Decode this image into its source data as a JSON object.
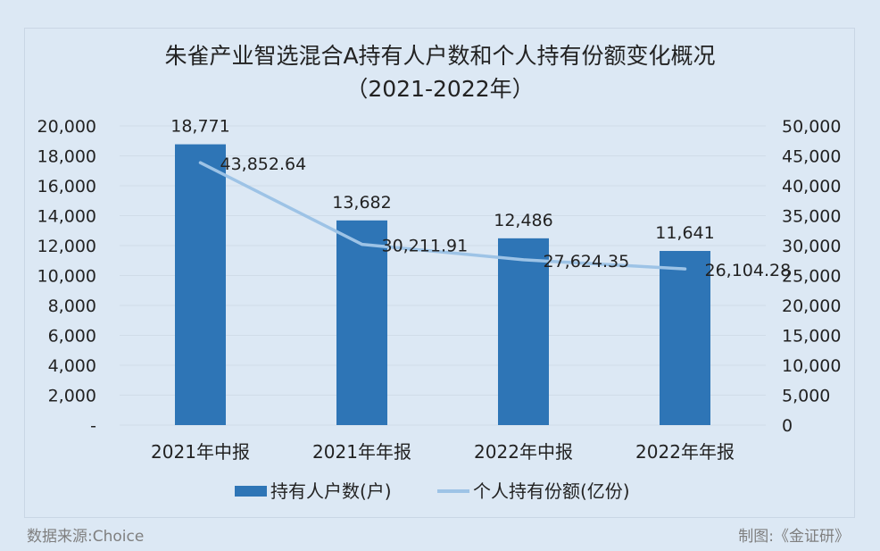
{
  "title_line1": "朱雀产业智选混合A持有人户数和个人持有份额变化概况",
  "title_line2": "（2021-2022年）",
  "source": "数据来源:Choice",
  "credit": "制图:《金证研》",
  "colors": {
    "bar": "#2e75b6",
    "line": "#9dc3e6",
    "background": "#dce8f4",
    "grid": "#d0dce8"
  },
  "chart_data": {
    "type": "bar",
    "categories": [
      "2021年中报",
      "2021年年报",
      "2022年中报",
      "2022年年报"
    ],
    "series": [
      {
        "name": "持有人户数(户)",
        "type": "bar",
        "axis": "left",
        "values": [
          18771,
          13682,
          12486,
          11641
        ],
        "labels": [
          "18,771",
          "13,682",
          "12,486",
          "11,641"
        ]
      },
      {
        "name": "个人持有份额(亿份)",
        "type": "line",
        "axis": "right",
        "values": [
          43852.64,
          30211.91,
          27624.35,
          26104.28
        ],
        "labels": [
          "43,852.64",
          "30,211.91",
          "27,624.35",
          "26,104.28"
        ]
      }
    ],
    "left_axis": {
      "ylim": [
        0,
        20000
      ],
      "ticks": [
        "-",
        "2,000",
        "4,000",
        "6,000",
        "8,000",
        "10,000",
        "12,000",
        "14,000",
        "16,000",
        "18,000",
        "20,000"
      ]
    },
    "right_axis": {
      "ylim": [
        0,
        50000
      ],
      "ticks": [
        "0",
        "5,000",
        "10,000",
        "15,000",
        "20,000",
        "25,000",
        "30,000",
        "35,000",
        "40,000",
        "45,000",
        "50,000"
      ]
    },
    "grid": true,
    "legend_position": "bottom"
  }
}
